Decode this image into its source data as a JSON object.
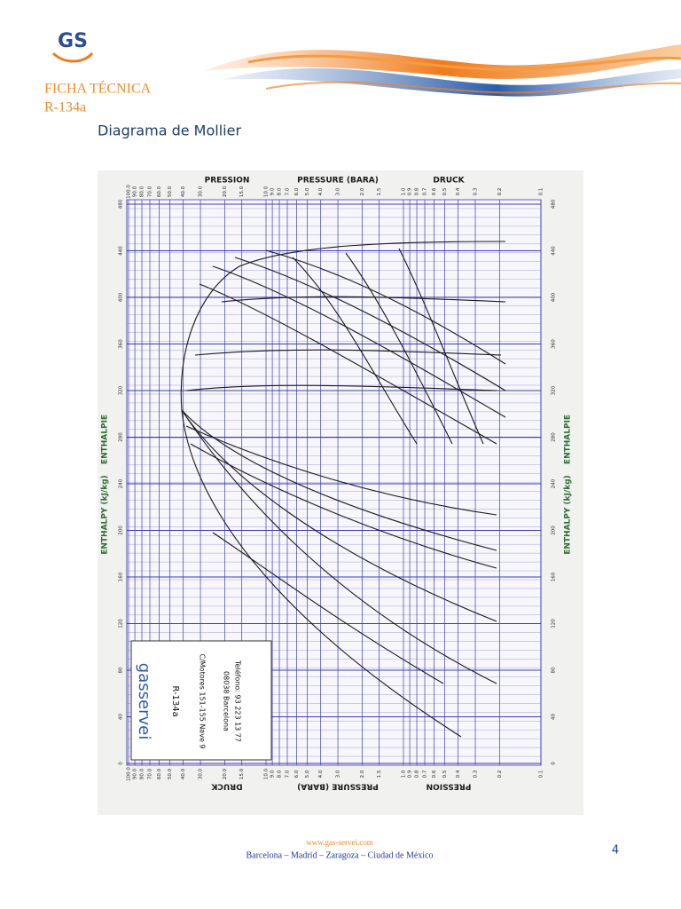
{
  "header": {
    "logo": "GS",
    "title": "FICHA TÉCNICA",
    "subtitle": "R-134a",
    "heading": "Diagrama de Mollier"
  },
  "diagram": {
    "top_labels": [
      "PRESSION",
      "PRESSURE (BARA)",
      "DRUCK"
    ],
    "axis_label": "ENTHALPY (kJ/kg)",
    "axis_label_2": "ENTHALPIE",
    "pressure_ticks": [
      {
        "value": 100,
        "label": "100.0"
      },
      {
        "value": 90,
        "label": "90.0"
      },
      {
        "value": 80,
        "label": "80.0"
      },
      {
        "value": 70,
        "label": "70.0"
      },
      {
        "value": 60,
        "label": "60.0"
      },
      {
        "value": 50,
        "label": "50.0"
      },
      {
        "value": 40,
        "label": "40.0"
      },
      {
        "value": 30,
        "label": "30.0"
      },
      {
        "value": 20,
        "label": "20.0"
      },
      {
        "value": 15,
        "label": "15.0"
      },
      {
        "value": 10,
        "label": "10.0"
      },
      {
        "value": 9,
        "label": "9.0"
      },
      {
        "value": 8,
        "label": "8.0"
      },
      {
        "value": 7,
        "label": "7.0"
      },
      {
        "value": 6,
        "label": "6.0"
      },
      {
        "value": 5,
        "label": "5.0"
      },
      {
        "value": 4,
        "label": "4.0"
      },
      {
        "value": 3,
        "label": "3.0"
      },
      {
        "value": 2,
        "label": "2.0"
      },
      {
        "value": 1.5,
        "label": "1.5"
      },
      {
        "value": 1,
        "label": "1.0"
      },
      {
        "value": 0.9,
        "label": "0.9"
      },
      {
        "value": 0.8,
        "label": "0.8"
      },
      {
        "value": 0.7,
        "label": "0.7"
      },
      {
        "value": 0.6,
        "label": "0.6"
      },
      {
        "value": 0.5,
        "label": "0.5"
      },
      {
        "value": 0.4,
        "label": "0.4"
      },
      {
        "value": 0.3,
        "label": "0.3"
      },
      {
        "value": 0.2,
        "label": "0.2"
      },
      {
        "value": 0.1,
        "label": "0.1"
      }
    ],
    "enthalpy_ticks": [
      0,
      40,
      80,
      120,
      160,
      200,
      240,
      280,
      320,
      360,
      400,
      440,
      480
    ],
    "box": {
      "brand": "gasservei",
      "refrigerant": "R-134a",
      "address": "C/Motores 151-155 Nave 9",
      "city": "08038 Barcelona",
      "phone": "Teléfono: 93 223 13 77"
    }
  },
  "footer": {
    "url": "www.gas-servei.com",
    "cities": "Barcelona – Madrid – Zaragoza – Ciudad de México",
    "page": "4"
  }
}
